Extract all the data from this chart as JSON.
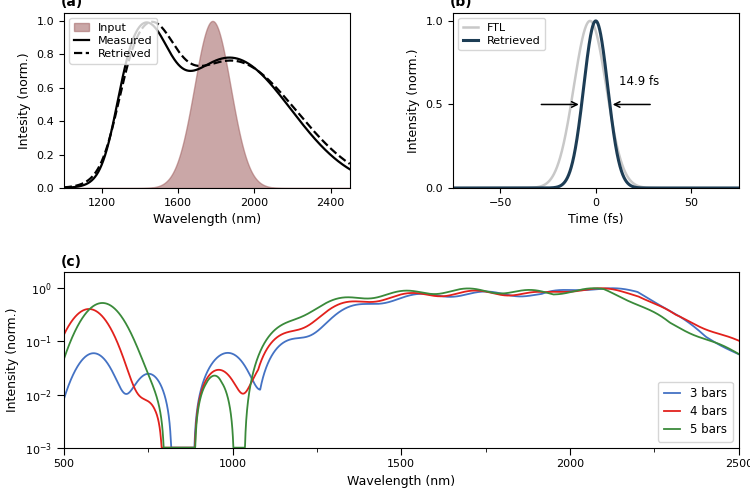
{
  "panel_a": {
    "label": "(a)",
    "xlabel": "Wavelength (nm)",
    "ylabel": "Intesity (norm.)",
    "xlim": [
      1000,
      2500
    ],
    "ylim": [
      0,
      1.05
    ],
    "xticks": [
      1200,
      1600,
      2000,
      2400
    ],
    "yticks": [
      0,
      0.2,
      0.4,
      0.6,
      0.8,
      1.0
    ],
    "input_color": "#a06060",
    "input_alpha": 0.55,
    "measured_color": "#000000",
    "retrieved_color": "#000000",
    "legend_labels": [
      "Input",
      "Measured",
      "Retrieved"
    ]
  },
  "panel_b": {
    "label": "(b)",
    "xlabel": "Time (fs)",
    "ylabel": "Intensity (norm.)",
    "xlim": [
      -75,
      75
    ],
    "ylim": [
      0,
      1.05
    ],
    "xticks": [
      -50,
      0,
      50
    ],
    "yticks": [
      0,
      0.5,
      1
    ],
    "ftl_color": "#c8c8c8",
    "retrieved_color": "#1d3d55",
    "annotation": "14.9 fs",
    "legend_labels": [
      "FTL",
      "Retrieved"
    ]
  },
  "panel_c": {
    "label": "(c)",
    "xlabel": "Wavelength (nm)",
    "ylabel": "Intensity (norm.)",
    "xlim": [
      500,
      2500
    ],
    "ylim": [
      0.001,
      2.0
    ],
    "xticks": [
      500,
      1000,
      1500,
      2000,
      2500
    ],
    "colors": [
      "#4472c4",
      "#e2211c",
      "#3a8a3a"
    ],
    "legend_labels": [
      "3 bars",
      "4 bars",
      "5 bars"
    ]
  }
}
